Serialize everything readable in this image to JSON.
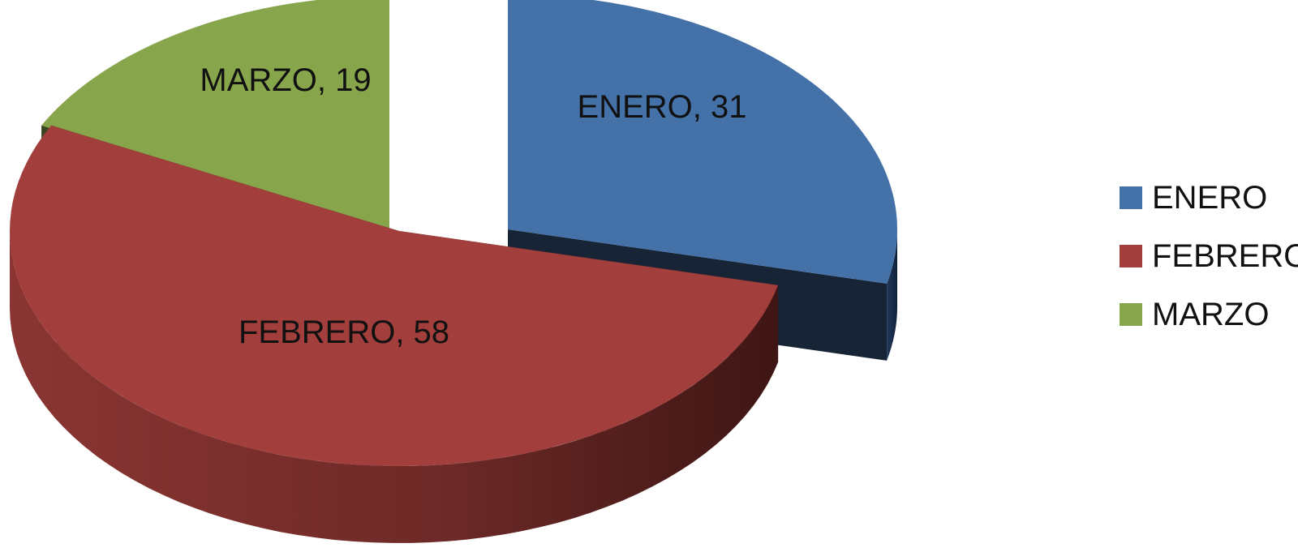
{
  "chart_data": {
    "type": "pie",
    "title": "",
    "categories": [
      "ENERO",
      "FEBRERO",
      "MARZO"
    ],
    "values": [
      31,
      58,
      19
    ],
    "colors": {
      "ENERO": "#4472A8",
      "FEBRERO": "#A23F3C",
      "MARZO": "#87A54A"
    },
    "labels": [
      "ENERO, 31",
      "FEBRERO, 58",
      "MARZO, 19"
    ],
    "legend": {
      "placement": "right",
      "entries": [
        "ENERO",
        "FEBRERO",
        "MARZO"
      ]
    },
    "style": "3d-exploded"
  }
}
